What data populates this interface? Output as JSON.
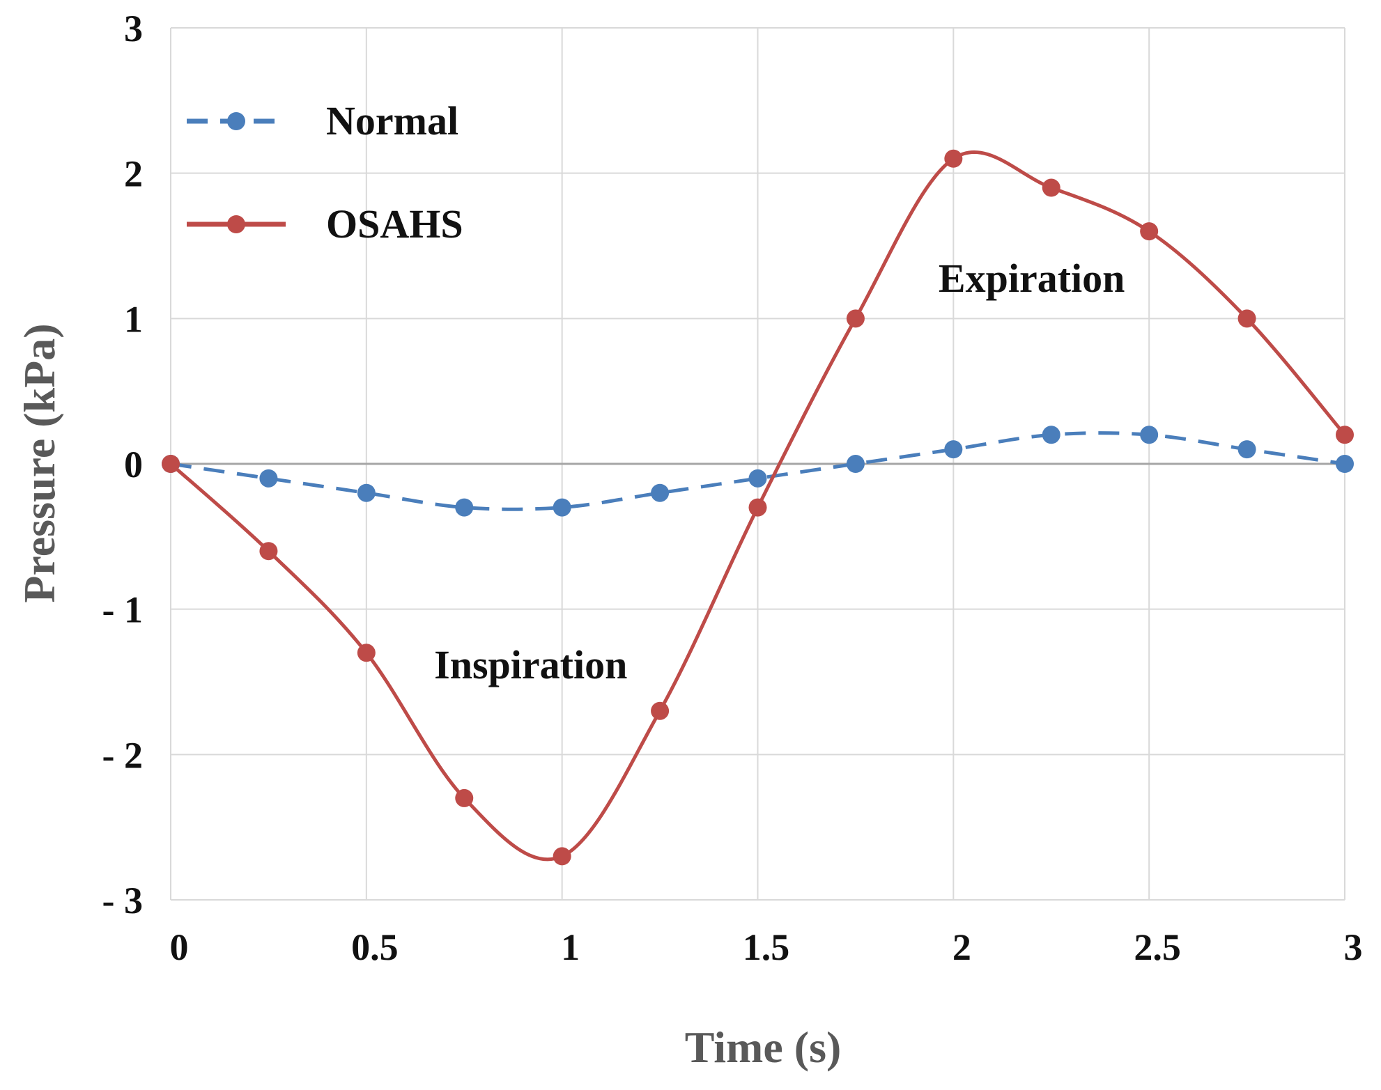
{
  "chart_data": {
    "type": "line",
    "title": "",
    "xlabel": "Time (s)",
    "ylabel": "Pressure (kPa)",
    "xlim": [
      0,
      3
    ],
    "ylim": [
      -3,
      3
    ],
    "x_ticks": [
      0,
      0.5,
      1,
      1.5,
      2,
      2.5,
      3
    ],
    "x_tick_labels": [
      "0",
      "0.5",
      "1",
      "1.5",
      "2",
      "2.5",
      "3"
    ],
    "y_ticks": [
      3,
      2,
      1,
      0,
      -1,
      -2,
      -3
    ],
    "y_tick_labels": [
      "3",
      "2",
      "1",
      "0",
      "- 1",
      "- 2",
      "- 3"
    ],
    "grid": true,
    "legend_position": "top-left",
    "x": [
      0,
      0.25,
      0.5,
      0.75,
      1,
      1.25,
      1.5,
      1.75,
      2,
      2.25,
      2.5,
      2.75,
      3
    ],
    "series": [
      {
        "name": "Normal",
        "color": "#4a7ebb",
        "style": "dashed",
        "values": [
          0,
          -0.1,
          -0.2,
          -0.3,
          -0.3,
          -0.2,
          -0.1,
          0,
          0.1,
          0.2,
          0.2,
          0.1,
          0
        ]
      },
      {
        "name": "OSAHS",
        "color": "#be4b48",
        "style": "solid",
        "values": [
          0,
          -0.6,
          -1.3,
          -2.3,
          -2.7,
          -1.7,
          -0.3,
          1.0,
          2.1,
          1.9,
          1.6,
          1.0,
          0.2
        ]
      }
    ],
    "annotations": [
      {
        "text": "Inspiration",
        "x": 0.92,
        "y": -1.38
      },
      {
        "text": "Expiration",
        "x": 2.2,
        "y": 1.28
      }
    ]
  }
}
